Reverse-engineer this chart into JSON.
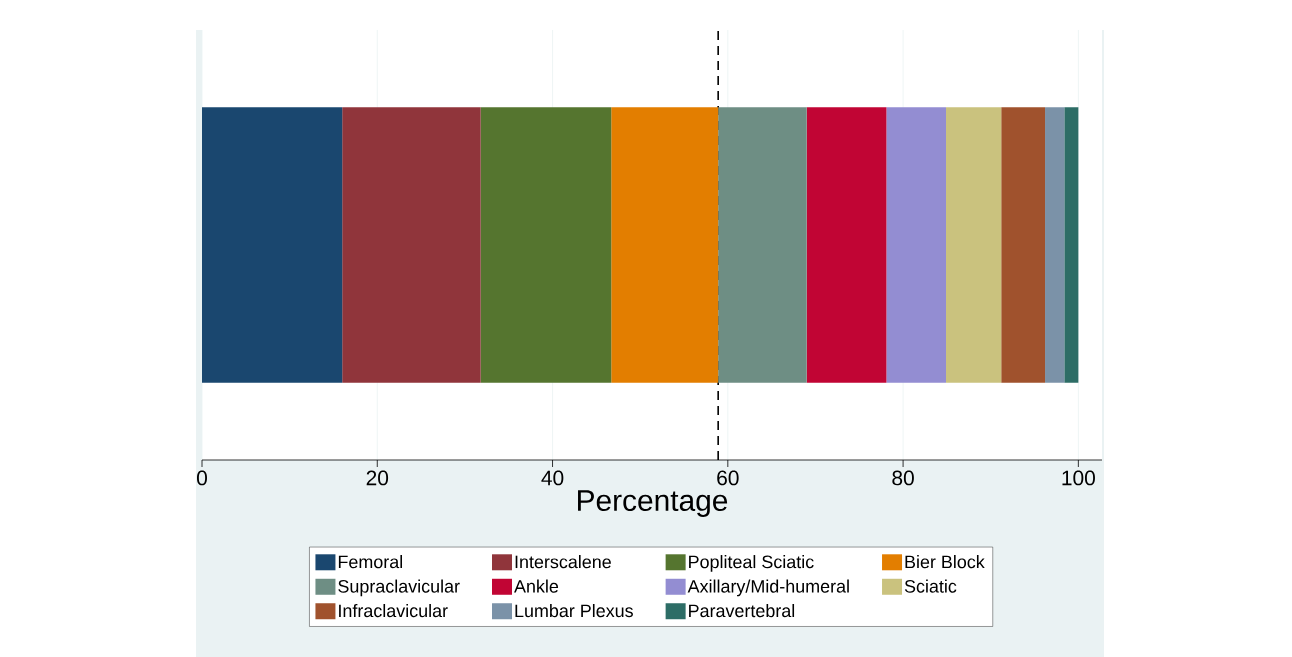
{
  "chart_data": {
    "type": "bar",
    "orientation": "horizontal",
    "stacked": true,
    "categories": [
      null
    ],
    "series": [
      {
        "name": "Femoral",
        "color": "#1a476f",
        "values": [
          16.0
        ]
      },
      {
        "name": "Interscalene",
        "color": "#90353b",
        "values": [
          15.8
        ]
      },
      {
        "name": "Popliteal Sciatic",
        "color": "#55752f",
        "values": [
          14.9
        ]
      },
      {
        "name": "Bier Block",
        "color": "#e37e00",
        "values": [
          12.2
        ]
      },
      {
        "name": "Supraclavicular",
        "color": "#6e8e84",
        "values": [
          10.1
        ]
      },
      {
        "name": "Ankle",
        "color": "#c10534",
        "values": [
          9.1
        ]
      },
      {
        "name": "Axillary/Mid-humeral",
        "color": "#938dd2",
        "values": [
          6.8
        ]
      },
      {
        "name": "Sciatic",
        "color": "#cac27e",
        "values": [
          6.3
        ]
      },
      {
        "name": "Infraclavicular",
        "color": "#a0522d",
        "values": [
          5.0
        ]
      },
      {
        "name": "Lumbar Plexus",
        "color": "#7b92a8",
        "values": [
          2.2
        ]
      },
      {
        "name": "Paravertebral",
        "color": "#2d6d66",
        "values": [
          1.6
        ]
      }
    ],
    "xlim": [
      0,
      102.7
    ],
    "xticks": [
      0,
      20,
      40,
      60,
      80,
      100
    ],
    "xlabel": "Percentage",
    "grid": "x",
    "legend": "bottom",
    "tick_labels": "x",
    "ref_lines": [
      {
        "axis": "x",
        "value": 58.9,
        "color": "#000000",
        "line_style": "dashed"
      }
    ]
  }
}
